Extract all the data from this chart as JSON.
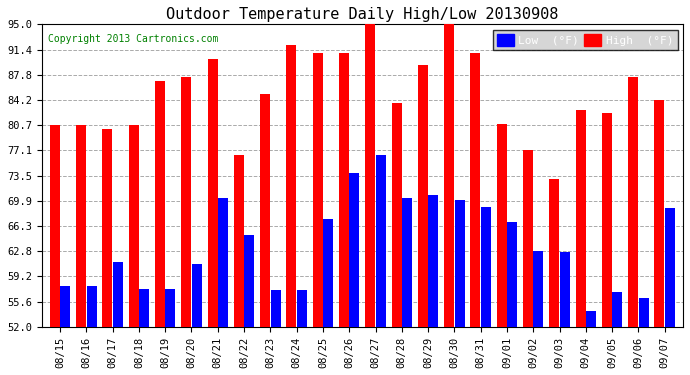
{
  "dates": [
    "08/15",
    "08/16",
    "08/17",
    "08/18",
    "08/19",
    "08/20",
    "08/21",
    "08/22",
    "08/23",
    "08/24",
    "08/25",
    "08/26",
    "08/27",
    "08/28",
    "08/29",
    "08/30",
    "08/31",
    "09/01",
    "09/02",
    "09/03",
    "09/04",
    "09/05",
    "09/06",
    "09/07"
  ],
  "high": [
    80.7,
    80.7,
    80.1,
    80.7,
    86.9,
    87.6,
    90.1,
    76.5,
    85.1,
    92.1,
    91.0,
    91.0,
    95.0,
    83.8,
    89.2,
    95.0,
    91.0,
    80.8,
    77.2,
    73.0,
    82.9,
    82.4,
    87.6,
    84.2
  ],
  "low": [
    57.9,
    57.9,
    61.2,
    57.4,
    57.4,
    61.0,
    70.3,
    65.1,
    57.2,
    57.2,
    67.3,
    73.9,
    76.5,
    70.3,
    70.7,
    70.0,
    69.1,
    66.9,
    62.8,
    62.6,
    54.3,
    57.0,
    56.1,
    68.9
  ],
  "title": "Outdoor Temperature Daily High/Low 20130908",
  "copyright": "Copyright 2013 Cartronics.com",
  "yticks": [
    52.0,
    55.6,
    59.2,
    62.8,
    66.3,
    69.9,
    73.5,
    77.1,
    80.7,
    84.2,
    87.8,
    91.4,
    95.0
  ],
  "ymin": 52.0,
  "ymax": 95.0,
  "low_color": "#0000ff",
  "high_color": "#ff0000",
  "bg_color": "#ffffff",
  "grid_color": "#aaaaaa",
  "legend_low_label": "Low  (°F)",
  "legend_high_label": "High  (°F)"
}
